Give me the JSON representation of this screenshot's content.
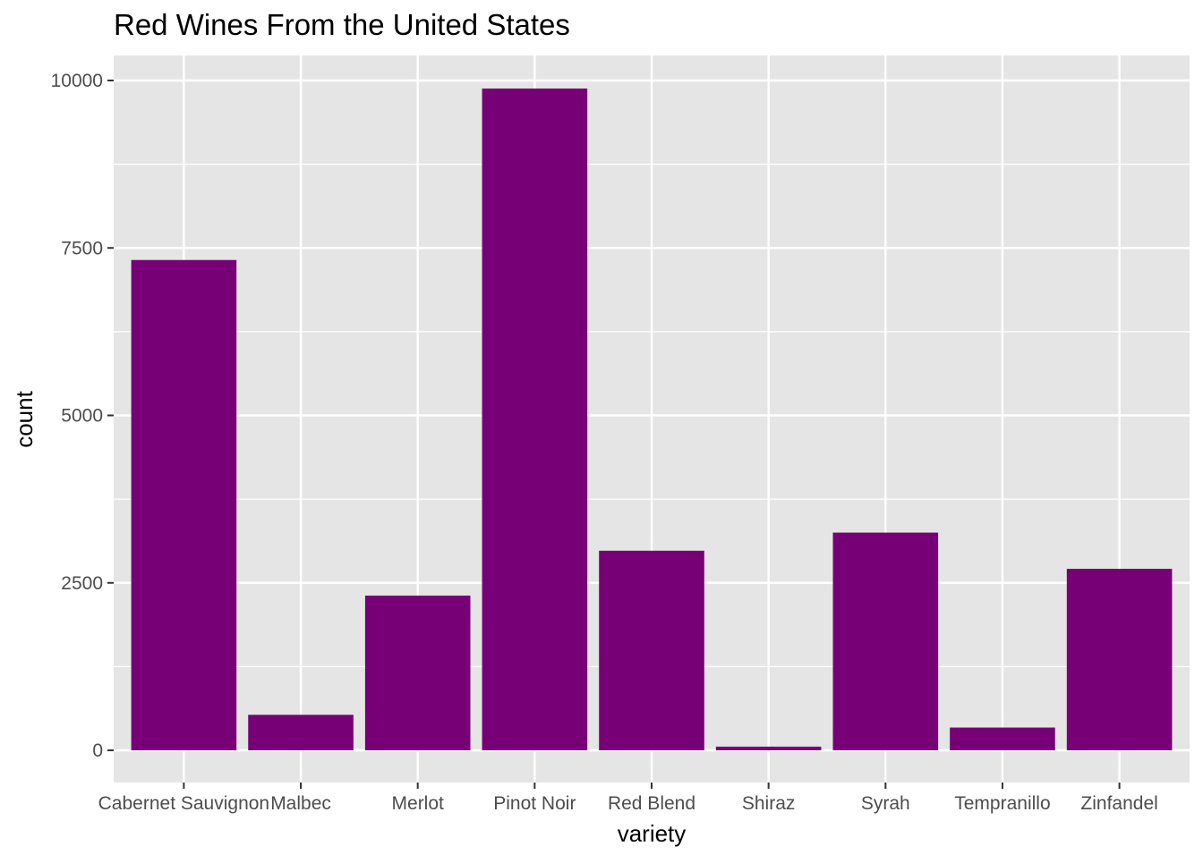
{
  "chart_data": {
    "type": "bar",
    "title": "Red Wines From the United States",
    "xlabel": "variety",
    "ylabel": "count",
    "categories": [
      "Cabernet Sauvignon",
      "Malbec",
      "Merlot",
      "Pinot Noir",
      "Red Blend",
      "Shiraz",
      "Syrah",
      "Tempranillo",
      "Zinfandel"
    ],
    "values": [
      7320,
      530,
      2310,
      9880,
      2980,
      55,
      3250,
      340,
      2710
    ],
    "yticks": [
      0,
      2500,
      5000,
      7500,
      10000
    ],
    "ylim": [
      -470,
      10370
    ],
    "grid": true,
    "legend": "none",
    "colors": {
      "bar": "#770077",
      "panel": "#e5e5e5",
      "grid": "#ffffff",
      "tick_text": "#4d4d4d",
      "tick_mark": "#333333"
    }
  }
}
